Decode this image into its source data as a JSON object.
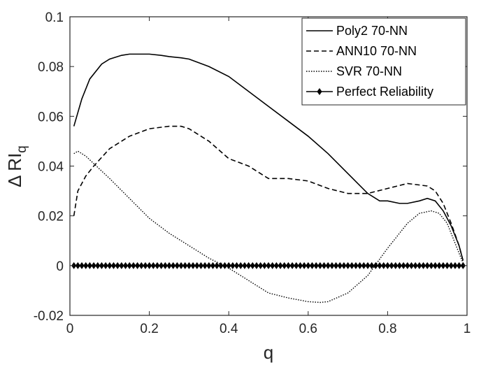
{
  "chart_data": {
    "type": "line",
    "title": "",
    "xlabel": "q",
    "ylabel": "Δ RI",
    "ylabel_subscript": "q",
    "xlim": [
      0,
      1
    ],
    "ylim": [
      -0.02,
      0.1
    ],
    "x_ticks": [
      0,
      0.2,
      0.4,
      0.6,
      0.8,
      1
    ],
    "x_tick_labels": [
      "0",
      "0.2",
      "0.4",
      "0.6",
      "0.8",
      "1"
    ],
    "y_ticks": [
      -0.02,
      0,
      0.02,
      0.04,
      0.06,
      0.08,
      0.1
    ],
    "y_tick_labels": [
      "-0.02",
      "0",
      "0.02",
      "0.04",
      "0.06",
      "0.08",
      "0.1"
    ],
    "grid": false,
    "legend_position": "top-right",
    "series": [
      {
        "name": "Poly2 70-NN",
        "style": "solid",
        "color": "#000000",
        "x": [
          0.01,
          0.03,
          0.05,
          0.08,
          0.1,
          0.13,
          0.15,
          0.18,
          0.2,
          0.23,
          0.25,
          0.28,
          0.3,
          0.35,
          0.4,
          0.45,
          0.5,
          0.55,
          0.6,
          0.65,
          0.7,
          0.75,
          0.78,
          0.8,
          0.83,
          0.85,
          0.88,
          0.9,
          0.92,
          0.94,
          0.96,
          0.98,
          0.99
        ],
        "y": [
          0.056,
          0.067,
          0.075,
          0.081,
          0.083,
          0.0845,
          0.085,
          0.085,
          0.085,
          0.0845,
          0.084,
          0.0835,
          0.083,
          0.08,
          0.076,
          0.07,
          0.064,
          0.058,
          0.052,
          0.045,
          0.037,
          0.029,
          0.026,
          0.026,
          0.025,
          0.025,
          0.026,
          0.027,
          0.026,
          0.022,
          0.016,
          0.008,
          0.002
        ]
      },
      {
        "name": "ANN10 70-NN",
        "style": "dashed",
        "color": "#000000",
        "x": [
          0.01,
          0.02,
          0.04,
          0.06,
          0.1,
          0.15,
          0.2,
          0.25,
          0.28,
          0.3,
          0.35,
          0.4,
          0.45,
          0.5,
          0.55,
          0.6,
          0.65,
          0.7,
          0.75,
          0.8,
          0.85,
          0.9,
          0.92,
          0.94,
          0.96,
          0.98,
          0.99
        ],
        "y": [
          0.02,
          0.03,
          0.036,
          0.04,
          0.047,
          0.052,
          0.055,
          0.056,
          0.056,
          0.055,
          0.05,
          0.043,
          0.04,
          0.035,
          0.035,
          0.034,
          0.031,
          0.029,
          0.029,
          0.031,
          0.033,
          0.032,
          0.03,
          0.025,
          0.017,
          0.008,
          0.002
        ]
      },
      {
        "name": "SVR 70-NN",
        "style": "dotted",
        "color": "#000000",
        "x": [
          0.01,
          0.02,
          0.04,
          0.06,
          0.1,
          0.15,
          0.2,
          0.25,
          0.3,
          0.35,
          0.4,
          0.45,
          0.5,
          0.55,
          0.6,
          0.63,
          0.65,
          0.7,
          0.75,
          0.8,
          0.85,
          0.88,
          0.91,
          0.93,
          0.95,
          0.97,
          0.99
        ],
        "y": [
          0.045,
          0.046,
          0.044,
          0.041,
          0.035,
          0.027,
          0.019,
          0.013,
          0.008,
          0.003,
          -0.001,
          -0.006,
          -0.011,
          -0.013,
          -0.0145,
          -0.0148,
          -0.0145,
          -0.011,
          -0.004,
          0.007,
          0.017,
          0.021,
          0.022,
          0.021,
          0.017,
          0.009,
          0.001
        ]
      },
      {
        "name": "Perfect Reliability",
        "style": "solid-diamond",
        "color": "#000000",
        "x": [
          0.01,
          0.02,
          0.03,
          0.04,
          0.05,
          0.06,
          0.07,
          0.08,
          0.09,
          0.1,
          0.11,
          0.12,
          0.13,
          0.14,
          0.15,
          0.16,
          0.17,
          0.18,
          0.19,
          0.2,
          0.21,
          0.22,
          0.23,
          0.24,
          0.25,
          0.26,
          0.27,
          0.28,
          0.29,
          0.3,
          0.31,
          0.32,
          0.33,
          0.34,
          0.35,
          0.36,
          0.37,
          0.38,
          0.39,
          0.4,
          0.41,
          0.42,
          0.43,
          0.44,
          0.45,
          0.46,
          0.47,
          0.48,
          0.49,
          0.5,
          0.51,
          0.52,
          0.53,
          0.54,
          0.55,
          0.56,
          0.57,
          0.58,
          0.59,
          0.6,
          0.61,
          0.62,
          0.63,
          0.64,
          0.65,
          0.66,
          0.67,
          0.68,
          0.69,
          0.7,
          0.71,
          0.72,
          0.73,
          0.74,
          0.75,
          0.76,
          0.77,
          0.78,
          0.79,
          0.8,
          0.81,
          0.82,
          0.83,
          0.84,
          0.85,
          0.86,
          0.87,
          0.88,
          0.89,
          0.9,
          0.91,
          0.92,
          0.93,
          0.94,
          0.95,
          0.96,
          0.97,
          0.98,
          0.99
        ],
        "y": [
          0,
          0,
          0,
          0,
          0,
          0,
          0,
          0,
          0,
          0,
          0,
          0,
          0,
          0,
          0,
          0,
          0,
          0,
          0,
          0,
          0,
          0,
          0,
          0,
          0,
          0,
          0,
          0,
          0,
          0,
          0,
          0,
          0,
          0,
          0,
          0,
          0,
          0,
          0,
          0,
          0,
          0,
          0,
          0,
          0,
          0,
          0,
          0,
          0,
          0,
          0,
          0,
          0,
          0,
          0,
          0,
          0,
          0,
          0,
          0,
          0,
          0,
          0,
          0,
          0,
          0,
          0,
          0,
          0,
          0,
          0,
          0,
          0,
          0,
          0,
          0,
          0,
          0,
          0,
          0,
          0,
          0,
          0,
          0,
          0,
          0,
          0,
          0,
          0,
          0,
          0,
          0,
          0,
          0,
          0,
          0,
          0,
          0,
          0
        ]
      }
    ]
  }
}
